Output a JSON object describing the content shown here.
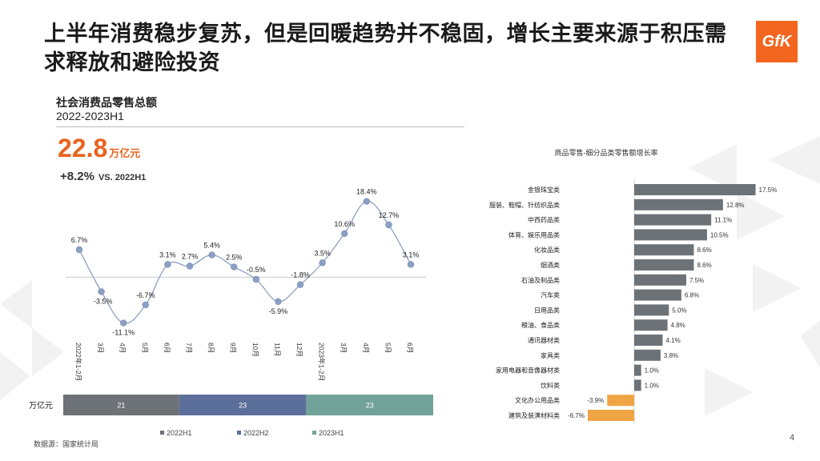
{
  "page": {
    "title": "上半年消费稳步复苏，但是回暖趋势并不稳固，增长主要来源于积压需求释放和避险投资",
    "logo_text": "GfK",
    "source": "数据源：国家统计局",
    "page_number": "4"
  },
  "summary": {
    "section_title": "社会消费品零售总额",
    "period": "2022-2023H1",
    "total_value": "22.8",
    "total_unit": "万亿元",
    "growth_value": "+8.2%",
    "growth_vs": "VS. 2022H1"
  },
  "colors": {
    "accent": "#e8641e",
    "line": "#8da0c4",
    "bar_positive": "#6d7277",
    "bar_negative": "#f0a544",
    "stack_2022h1": "#6d7277",
    "stack_2022h2": "#5c6f9a",
    "stack_2023h1": "#72a39a"
  },
  "chart_data": [
    {
      "type": "line",
      "title": "",
      "categories": [
        "2022年1-2月",
        "3月",
        "4月",
        "5月",
        "6月",
        "7月",
        "8月",
        "9月",
        "10月",
        "11月",
        "12月",
        "2023年1-2月",
        "3月",
        "4月",
        "5月",
        "6月"
      ],
      "series": [
        {
          "values": [
            6.7,
            -3.5,
            -11.1,
            -6.7,
            3.1,
            2.7,
            5.4,
            2.5,
            -0.5,
            -5.9,
            -1.8,
            3.5,
            10.6,
            18.4,
            12.7,
            3.1
          ]
        }
      ],
      "labels": [
        "6.7%",
        "-3.5%",
        "-11.1%",
        "-6.7%",
        "3.1%",
        "2.7%",
        "5.4%",
        "2.5%",
        "-0.5%",
        "-5.9%",
        "-1.8%",
        "3.5%",
        "10.6%",
        "18.4%",
        "12.7%",
        "3.1%"
      ],
      "ylim": [
        -12,
        20
      ]
    },
    {
      "type": "bar",
      "orientation": "horizontal",
      "title": "商品零售-细分品类零售额增长率",
      "categories": [
        "金银珠宝类",
        "服装、鞋帽、针纺织品类",
        "中西药品类",
        "体育、娱乐用品类",
        "化妆品类",
        "烟酒类",
        "石油及制品类",
        "汽车类",
        "日用品类",
        "粮油、食品类",
        "通讯器材类",
        "家具类",
        "家用电器和音像器材类",
        "饮料类",
        "文化办公用品类",
        "建筑及装潢材料类"
      ],
      "values": [
        17.5,
        12.8,
        11.1,
        10.5,
        8.6,
        8.6,
        7.5,
        6.8,
        5.0,
        4.8,
        4.1,
        3.8,
        1.0,
        1.0,
        -3.9,
        -6.7
      ],
      "labels": [
        "17.5%",
        "12.8%",
        "11.1%",
        "10.5%",
        "8.6%",
        "8.6%",
        "7.5%",
        "6.8%",
        "5.0%",
        "4.8%",
        "4.1%",
        "3.8%",
        "1.0%",
        "1.0%",
        "-3.9%",
        "-6.7%"
      ]
    },
    {
      "type": "bar",
      "orientation": "stacked-horizontal",
      "ylabel": "万亿元",
      "series": [
        {
          "name": "2022H1",
          "value": 21,
          "label": "21"
        },
        {
          "name": "2022H2",
          "value": 23,
          "label": "23"
        },
        {
          "name": "2023H1",
          "value": 23,
          "label": "23"
        }
      ]
    }
  ]
}
